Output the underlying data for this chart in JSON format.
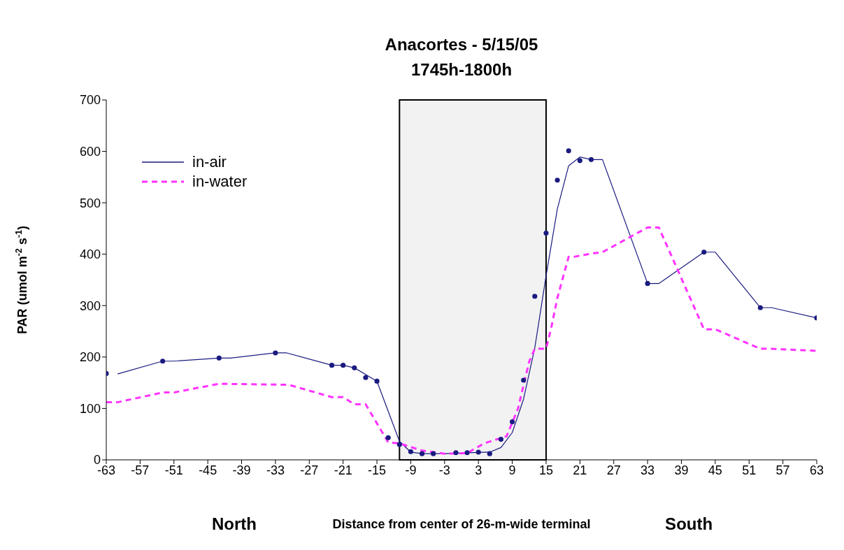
{
  "chart_data": {
    "type": "line",
    "title": "Anacortes - 5/15/05\n1745h-1800h",
    "xlabel": "Distance from center of 26-m-wide terminal",
    "ylabel": "PAR (umol m$^{-2}$ s$^{-1}$)",
    "annotations": [
      "North",
      "South"
    ],
    "xlim": [
      -63,
      63
    ],
    "xticks": [
      -63,
      -57,
      -51,
      -45,
      -39,
      -33,
      -27,
      -21,
      -15,
      -9,
      -3,
      3,
      9,
      15,
      21,
      27,
      33,
      39,
      45,
      51,
      57,
      63
    ],
    "ylim": [
      0,
      700
    ],
    "yticks": [
      0,
      100,
      200,
      300,
      400,
      500,
      600,
      700
    ],
    "grid": false,
    "legend": "top left",
    "bands": [
      {
        "axis": "x",
        "from": -11,
        "to": 15,
        "color": "#000000"
      }
    ],
    "series": [
      {
        "name": "in-air",
        "color": "#1a1a80",
        "line_style": "solid",
        "x": [
          -61,
          -53,
          -51,
          -43,
          -41,
          -33,
          -31,
          -23,
          -21,
          -19,
          -15,
          -11,
          -9,
          -7,
          -3,
          2,
          5,
          7,
          9,
          11,
          13,
          15,
          17,
          19,
          21,
          23,
          25,
          33,
          35,
          43,
          45,
          53,
          55,
          63
        ],
        "values": [
          167,
          192,
          192,
          198,
          198,
          208,
          208,
          184,
          184,
          179,
          153,
          36,
          15,
          12,
          12,
          14,
          15,
          24,
          53,
          118,
          218,
          358,
          488,
          572,
          589,
          584,
          584,
          343,
          343,
          404,
          404,
          296,
          296,
          276
        ]
      },
      {
        "name": "in-water",
        "color": "#ff33ff",
        "line_style": "dashed",
        "x": [
          -63,
          -61,
          -53,
          -51,
          -43,
          -31,
          -30,
          -23,
          -21,
          -19,
          -17,
          -13,
          -11,
          -7,
          -3,
          1,
          4,
          8,
          10,
          12,
          13,
          15,
          16,
          17,
          19,
          20,
          23,
          25,
          33,
          35,
          43,
          45,
          53,
          55,
          63
        ],
        "values": [
          112,
          112,
          131,
          131,
          148,
          146,
          144,
          122,
          122,
          108,
          108,
          34,
          32,
          18,
          12,
          13,
          32,
          46,
          99,
          191,
          216,
          216,
          261,
          315,
          395,
          395,
          401,
          404,
          452,
          452,
          254,
          254,
          216,
          216,
          212
        ]
      },
      {
        "type": "scatter",
        "color": "#1a1a80",
        "marker": "circle",
        "x": [
          -63,
          -53,
          -43,
          -33,
          -23,
          -21,
          -19,
          -17,
          -15,
          -13,
          -11,
          -9,
          -7,
          -5,
          -1,
          1,
          3,
          5,
          7,
          9,
          11,
          13,
          15,
          17,
          19,
          21,
          23,
          33,
          43,
          53,
          63
        ],
        "values": [
          168,
          192,
          198,
          208,
          184,
          184,
          179,
          160,
          153,
          43,
          30,
          16,
          12,
          12,
          14,
          14,
          15,
          12,
          40,
          74,
          155,
          318,
          441,
          544,
          601,
          582,
          584,
          343,
          404,
          296,
          276
        ]
      }
    ]
  }
}
